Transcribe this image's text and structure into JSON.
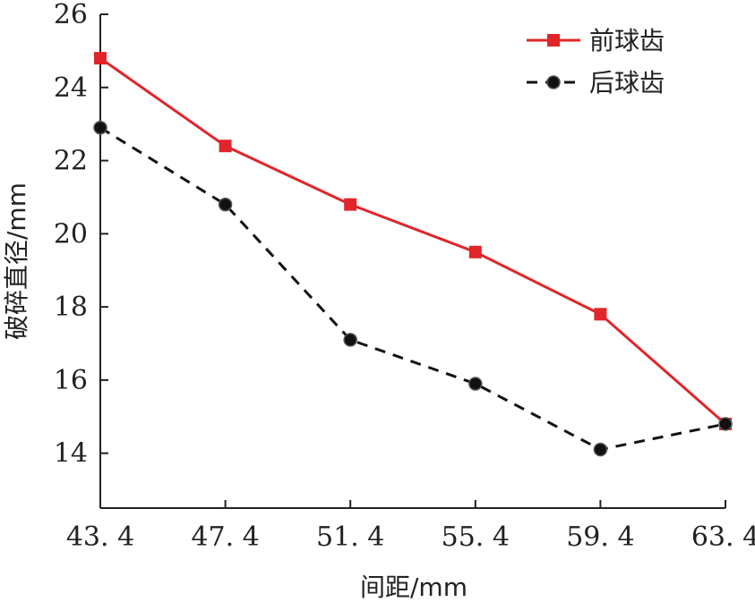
{
  "chart_data": {
    "type": "line",
    "x": [
      43.4,
      47.4,
      51.4,
      55.4,
      59.4,
      63.4
    ],
    "x_tick_labels": [
      "43. 4",
      "47. 4",
      "51. 4",
      "55. 4",
      "59. 4",
      "63. 4"
    ],
    "y_ticks": [
      14,
      16,
      18,
      20,
      22,
      24,
      26
    ],
    "xlabel": "间距/mm",
    "ylabel": "破碎直径/mm",
    "xlim": [
      43.4,
      63.4
    ],
    "ylim": [
      12.5,
      26
    ],
    "grid": false,
    "legend_position": "top-right",
    "series": [
      {
        "name": "前球齿",
        "color": "#e0262b",
        "line_style": "solid",
        "marker": "square",
        "values": [
          24.8,
          22.4,
          20.8,
          19.5,
          17.8,
          14.8
        ]
      },
      {
        "name": "后球齿",
        "color": "#111111",
        "line_style": "dashed",
        "marker": "circle",
        "values": [
          22.9,
          20.8,
          17.1,
          15.9,
          14.1,
          14.8
        ]
      }
    ]
  }
}
